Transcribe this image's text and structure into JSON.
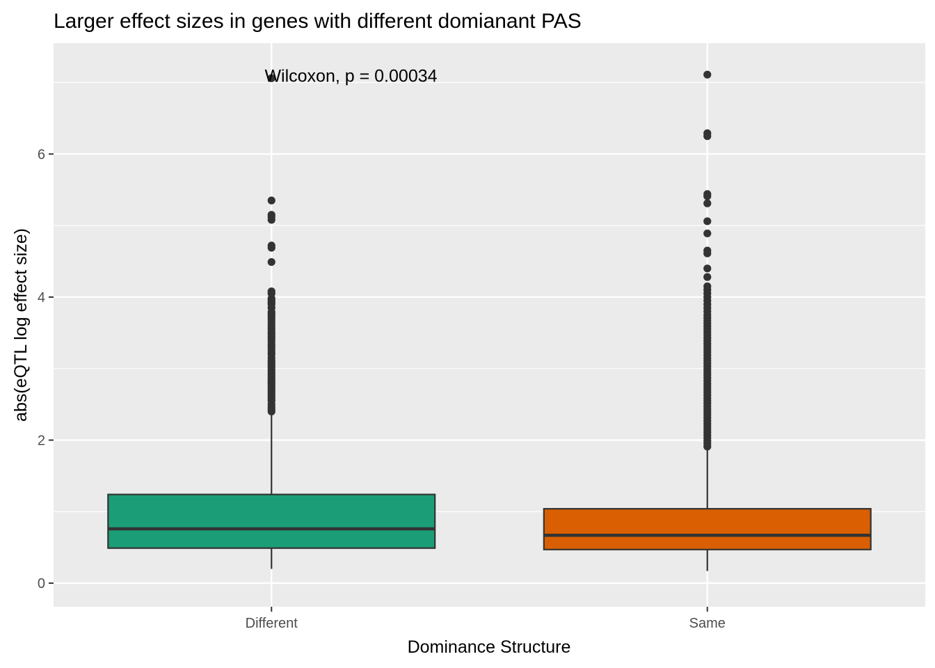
{
  "chart_data": {
    "type": "boxplot",
    "title": "Larger effect sizes in genes with different domianant PAS",
    "xlabel": "Dominance Structure",
    "ylabel": "abs(eQTL log effect size)",
    "ylim": [
      -0.33,
      7.55
    ],
    "y_ticks": [
      0,
      2,
      4,
      6
    ],
    "y_tick_labels": [
      "0",
      "2",
      "4",
      "6"
    ],
    "y_minor_breaks": [
      1,
      3,
      5,
      7
    ],
    "grid": true,
    "legend": "none",
    "annotation": "Wilcoxon, p = 0.00034",
    "annotation_anchor": {
      "x": 1.5,
      "y": 7.1
    },
    "categories": [
      "Different",
      "Same"
    ],
    "boxes": [
      {
        "category": "Different",
        "fill": "#1b9e77",
        "whisker_low": 0.2,
        "q1": 0.49,
        "median": 0.76,
        "q3": 1.24,
        "whisker_high": 2.37,
        "outliers": [
          7.06,
          5.35,
          5.15,
          5.12,
          5.08,
          4.72,
          4.69,
          4.49,
          4.08,
          4.05,
          3.98,
          3.95,
          3.92,
          3.9,
          3.85,
          3.79,
          3.76,
          3.73,
          3.7,
          3.66,
          3.62,
          3.58,
          3.55,
          3.51,
          3.48,
          3.45,
          3.42,
          3.38,
          3.34,
          3.31,
          3.27,
          3.23,
          3.2,
          3.15,
          3.11,
          3.08,
          3.05,
          3.02,
          2.99,
          2.96,
          2.93,
          2.9,
          2.87,
          2.84,
          2.81,
          2.79,
          2.76,
          2.73,
          2.7,
          2.67,
          2.64,
          2.61,
          2.58,
          2.55,
          2.5,
          2.46,
          2.43,
          2.4
        ]
      },
      {
        "category": "Same",
        "fill": "#d95f02",
        "whisker_low": 0.17,
        "q1": 0.47,
        "median": 0.67,
        "q3": 1.04,
        "whisker_high": 1.9,
        "outliers": [
          7.11,
          6.29,
          6.25,
          5.44,
          5.41,
          5.31,
          5.06,
          4.89,
          4.65,
          4.61,
          4.4,
          4.28,
          4.15,
          4.1,
          4.05,
          4.0,
          3.95,
          3.9,
          3.85,
          3.8,
          3.75,
          3.71,
          3.67,
          3.63,
          3.59,
          3.55,
          3.51,
          3.47,
          3.43,
          3.39,
          3.35,
          3.31,
          3.27,
          3.23,
          3.19,
          3.15,
          3.11,
          3.07,
          3.03,
          2.99,
          2.95,
          2.91,
          2.87,
          2.83,
          2.79,
          2.75,
          2.71,
          2.67,
          2.63,
          2.59,
          2.55,
          2.51,
          2.47,
          2.43,
          2.39,
          2.35,
          2.31,
          2.27,
          2.23,
          2.19,
          2.15,
          2.11,
          2.07,
          2.03,
          1.99,
          1.95,
          1.91
        ]
      }
    ]
  }
}
